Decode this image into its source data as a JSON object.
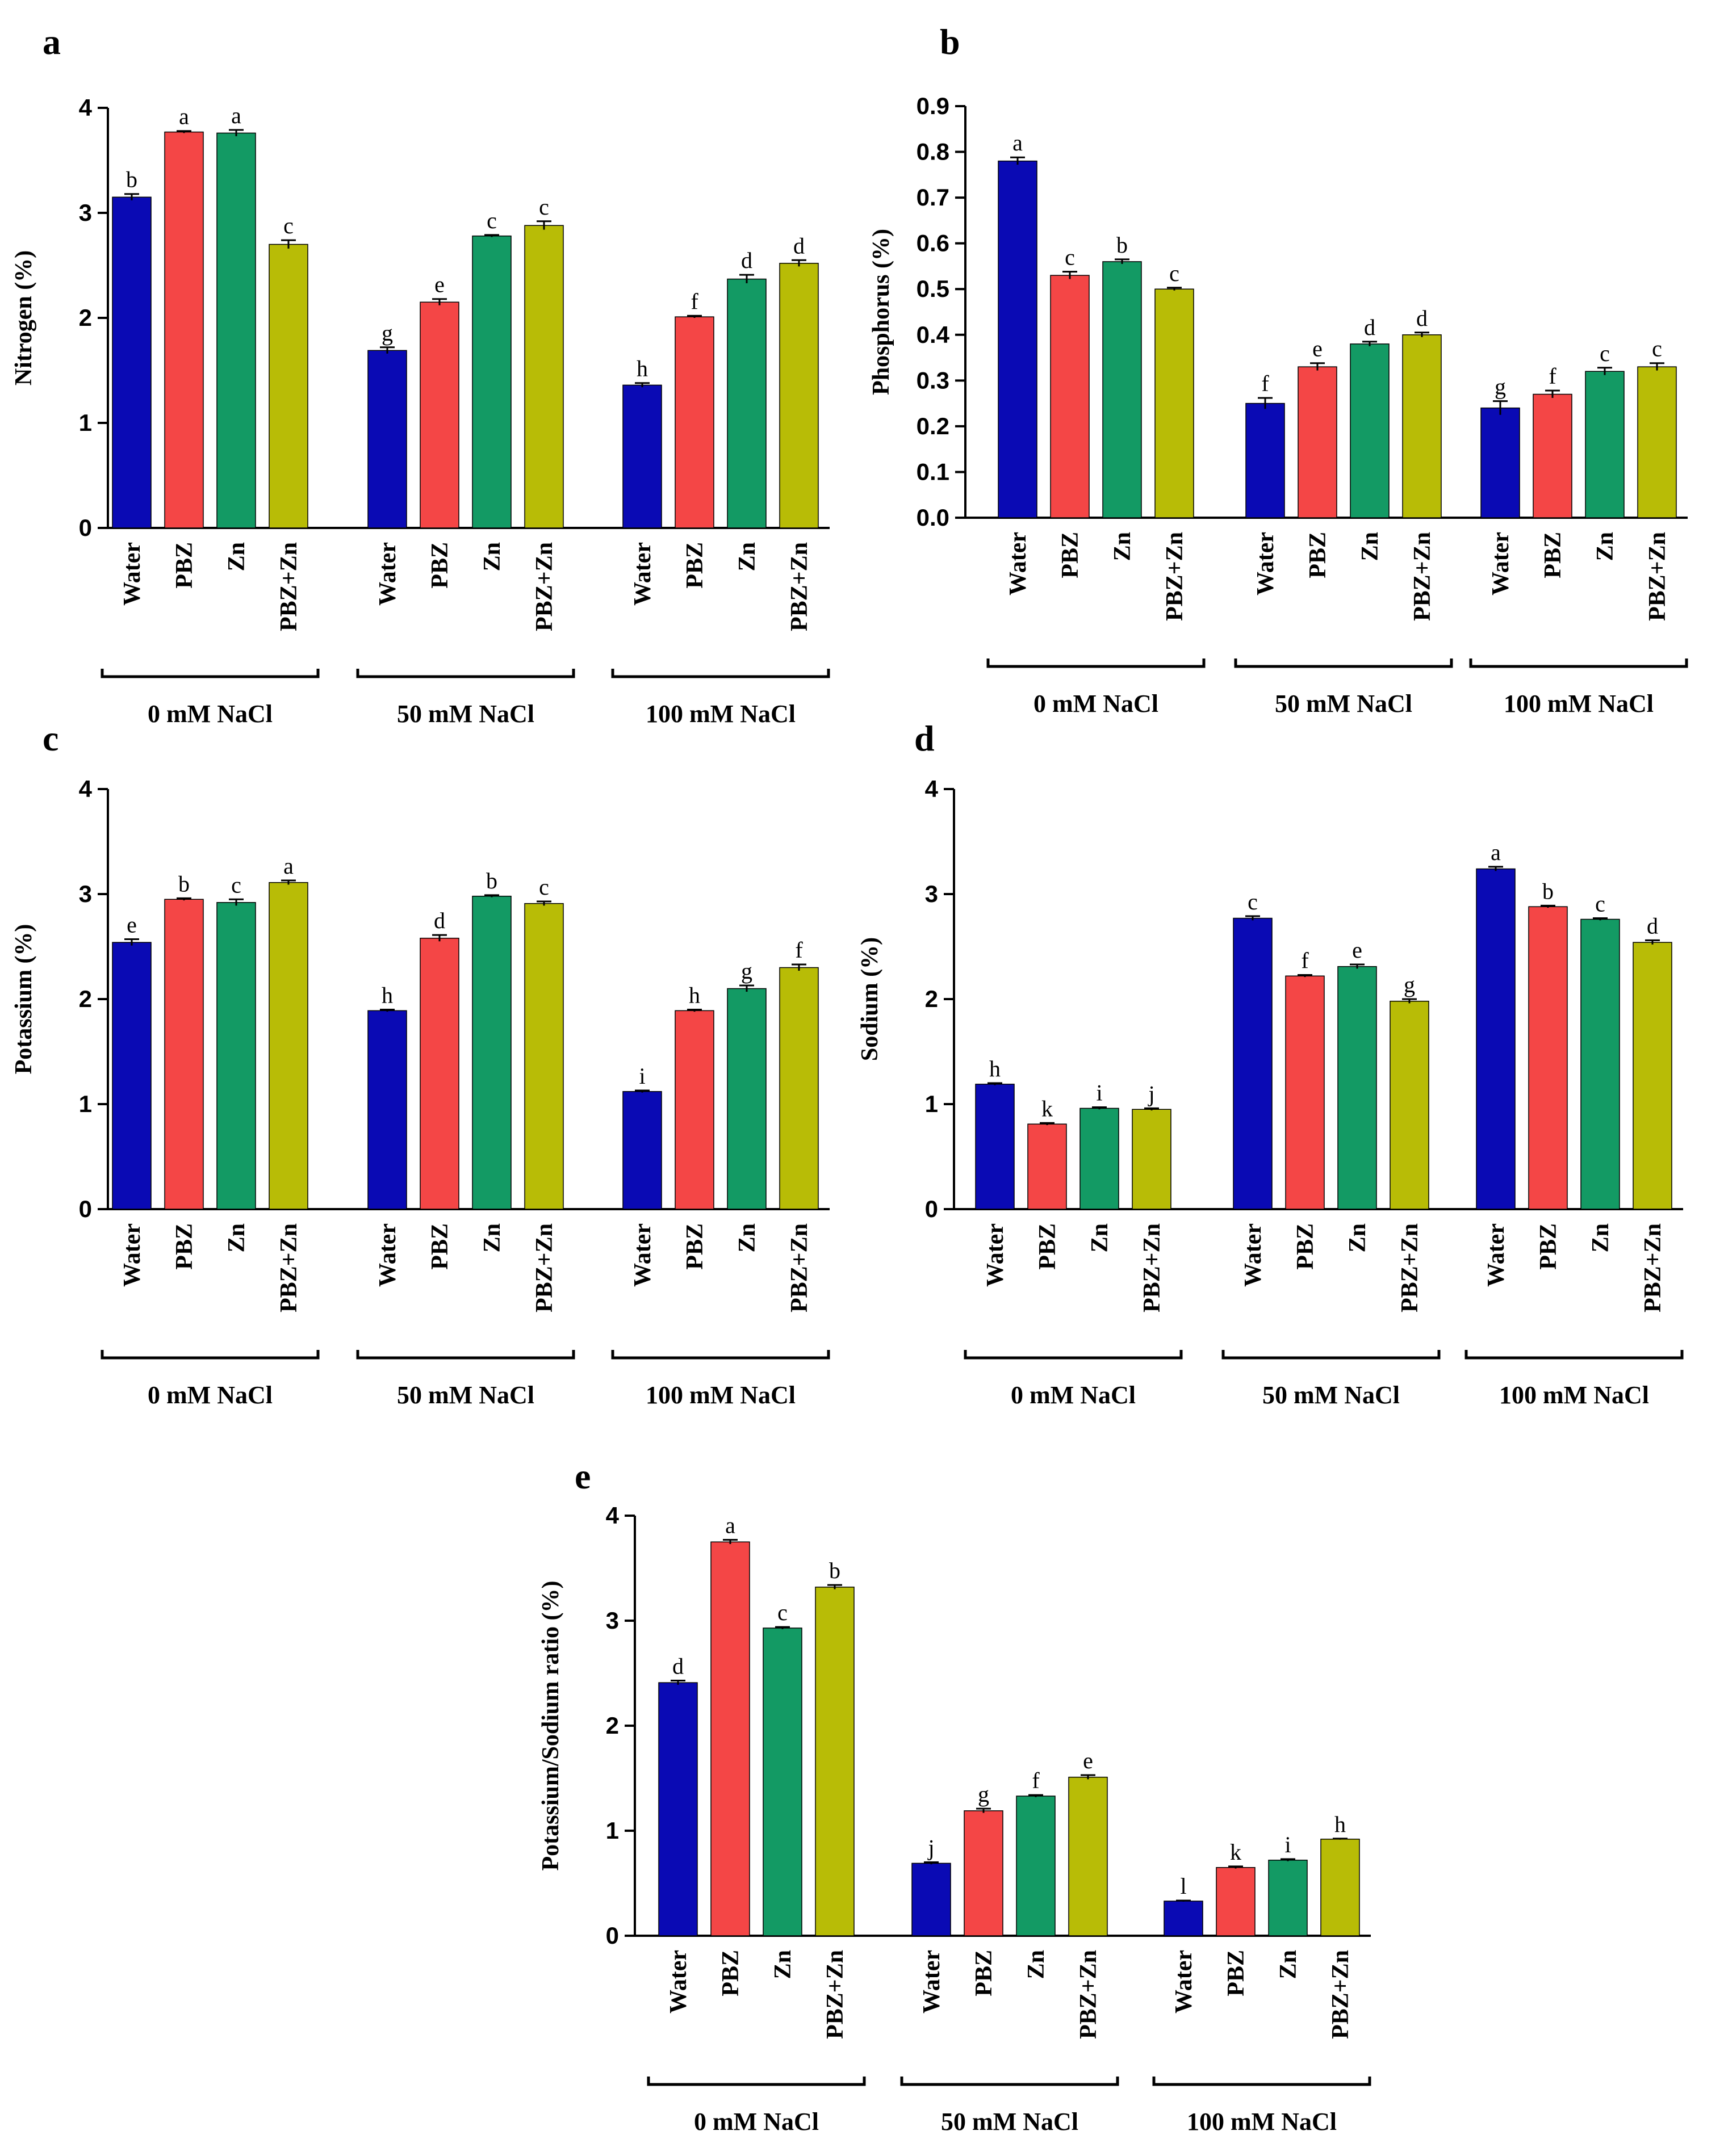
{
  "colors": {
    "Water": "#0a0ab4",
    "PBZ": "#f44646",
    "Zn": "#139a64",
    "PBZ+Zn": "#b8bc06"
  },
  "chart_data": [
    {
      "panel": "a",
      "type": "bar",
      "ylabel": "Nitrogen (%)",
      "ylim": [
        0,
        4
      ],
      "yticks": [
        "0",
        "1",
        "2",
        "3",
        "4"
      ],
      "treatments": [
        "Water",
        "PBZ",
        "Zn",
        "PBZ+Zn"
      ],
      "groups": [
        "0 mM NaCl",
        "50 mM NaCl",
        "100 mM NaCl"
      ],
      "values": [
        [
          3.15,
          3.77,
          3.76,
          2.7
        ],
        [
          1.69,
          2.15,
          2.78,
          2.88
        ],
        [
          1.36,
          2.01,
          2.37,
          2.52
        ]
      ],
      "errors": [
        [
          0.03,
          0.01,
          0.03,
          0.04
        ],
        [
          0.03,
          0.03,
          0.01,
          0.04
        ],
        [
          0.02,
          0.01,
          0.04,
          0.03
        ]
      ],
      "letters": [
        [
          "b",
          "a",
          "a",
          "c"
        ],
        [
          "g",
          "e",
          "c",
          "c"
        ],
        [
          "h",
          "f",
          "d",
          "d"
        ]
      ]
    },
    {
      "panel": "b",
      "type": "bar",
      "ylabel": "Phosphorus (%)",
      "ylim": [
        0,
        0.9
      ],
      "yticks": [
        "0.0",
        "0.1",
        "0.2",
        "0.3",
        "0.4",
        "0.5",
        "0.6",
        "0.7",
        "0.8",
        "0.9"
      ],
      "treatments": [
        "Water",
        "PBZ",
        "Zn",
        "PBZ+Zn"
      ],
      "groups": [
        "0 mM NaCl",
        "50 mM NaCl",
        "100 mM NaCl"
      ],
      "values": [
        [
          0.78,
          0.53,
          0.56,
          0.5
        ],
        [
          0.25,
          0.33,
          0.38,
          0.4
        ],
        [
          0.24,
          0.27,
          0.32,
          0.33
        ]
      ],
      "errors": [
        [
          0.008,
          0.008,
          0.005,
          0.003
        ],
        [
          0.012,
          0.008,
          0.005,
          0.005
        ],
        [
          0.015,
          0.008,
          0.008,
          0.008
        ]
      ],
      "letters": [
        [
          "a",
          "c",
          "b",
          "c"
        ],
        [
          "f",
          "e",
          "d",
          "d"
        ],
        [
          "g",
          "f",
          "c",
          "c"
        ]
      ]
    },
    {
      "panel": "c",
      "type": "bar",
      "ylabel": "Potassium (%)",
      "ylim": [
        0,
        4
      ],
      "yticks": [
        "0",
        "1",
        "2",
        "3",
        "4"
      ],
      "treatments": [
        "Water",
        "PBZ",
        "Zn",
        "PBZ+Zn"
      ],
      "groups": [
        "0 mM NaCl",
        "50 mM NaCl",
        "100 mM NaCl"
      ],
      "values": [
        [
          2.54,
          2.95,
          2.92,
          3.11
        ],
        [
          1.89,
          2.58,
          2.98,
          2.91
        ],
        [
          1.12,
          1.89,
          2.1,
          2.3
        ]
      ],
      "errors": [
        [
          0.03,
          0.01,
          0.03,
          0.02
        ],
        [
          0.01,
          0.03,
          0.01,
          0.02
        ],
        [
          0.01,
          0.01,
          0.03,
          0.03
        ]
      ],
      "letters": [
        [
          "e",
          "b",
          "c",
          "a"
        ],
        [
          "h",
          "d",
          "b",
          "c"
        ],
        [
          "i",
          "h",
          "g",
          "f"
        ]
      ]
    },
    {
      "panel": "d",
      "type": "bar",
      "ylabel": "Sodium (%)",
      "ylim": [
        0,
        4
      ],
      "yticks": [
        "0",
        "1",
        "2",
        "3",
        "4"
      ],
      "treatments": [
        "Water",
        "PBZ",
        "Zn",
        "PBZ+Zn"
      ],
      "groups": [
        "0 mM NaCl",
        "50 mM NaCl",
        "100 mM NaCl"
      ],
      "values": [
        [
          1.19,
          0.81,
          0.96,
          0.95
        ],
        [
          2.77,
          2.22,
          2.31,
          1.98
        ],
        [
          3.24,
          2.88,
          2.76,
          2.54
        ]
      ],
      "errors": [
        [
          0.01,
          0.01,
          0.01,
          0.01
        ],
        [
          0.02,
          0.01,
          0.02,
          0.02
        ],
        [
          0.02,
          0.01,
          0.01,
          0.02
        ]
      ],
      "letters": [
        [
          "h",
          "k",
          "i",
          "j"
        ],
        [
          "c",
          "f",
          "e",
          "g"
        ],
        [
          "a",
          "b",
          "c",
          "d"
        ]
      ]
    },
    {
      "panel": "e",
      "type": "bar",
      "ylabel": "Potassium/Sodium ratio (%)",
      "ylim": [
        0,
        4
      ],
      "yticks": [
        "0",
        "1",
        "2",
        "3",
        "4"
      ],
      "treatments": [
        "Water",
        "PBZ",
        "Zn",
        "PBZ+Zn"
      ],
      "groups": [
        "0 mM NaCl",
        "50 mM NaCl",
        "100 mM NaCl"
      ],
      "values": [
        [
          2.41,
          3.75,
          2.93,
          3.32
        ],
        [
          0.69,
          1.19,
          1.33,
          1.51
        ],
        [
          0.33,
          0.65,
          0.72,
          0.92
        ]
      ],
      "errors": [
        [
          0.02,
          0.02,
          0.01,
          0.02
        ],
        [
          0.01,
          0.02,
          0.01,
          0.02
        ],
        [
          0.005,
          0.01,
          0.01,
          0.005
        ]
      ],
      "letters": [
        [
          "d",
          "a",
          "c",
          "b"
        ],
        [
          "j",
          "g",
          "f",
          "e"
        ],
        [
          "l",
          "k",
          "i",
          "h"
        ]
      ]
    }
  ]
}
